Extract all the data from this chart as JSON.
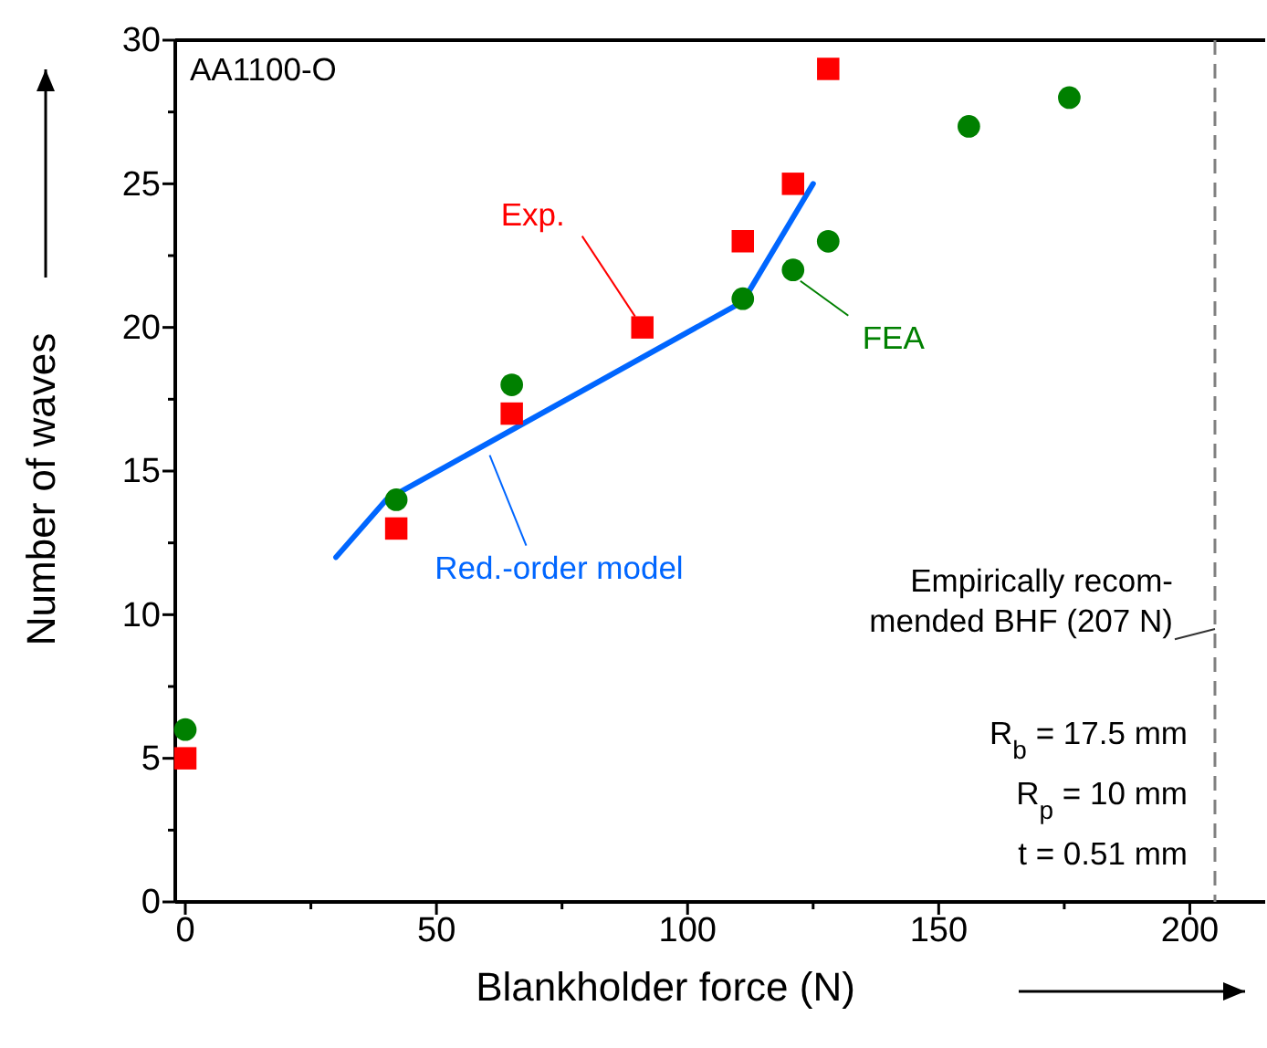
{
  "chart_data": {
    "type": "scatter",
    "xlabel": "Blankholder force (N)",
    "ylabel": "Number of waves",
    "xlim": [
      -2,
      215
    ],
    "ylim": [
      0,
      30
    ],
    "xticks": [
      0,
      {
        "value": 25,
        "label": null
      },
      50,
      {
        "value": 75,
        "label": null
      },
      100,
      {
        "value": 125,
        "label": null
      },
      150,
      {
        "value": 175,
        "label": null
      },
      200
    ],
    "yticks": [
      0,
      {
        "value": 2.5,
        "label": null
      },
      5,
      {
        "value": 7.5,
        "label": null
      },
      10,
      {
        "value": 12.5,
        "label": null
      },
      15,
      {
        "value": 17.5,
        "label": null
      },
      20,
      {
        "value": 22.5,
        "label": null
      },
      25,
      {
        "value": 27.5,
        "label": null
      },
      30
    ],
    "grid": false,
    "series": [
      {
        "name": "Red.-order model",
        "type": "line",
        "color": "#0066ff",
        "marker": "none",
        "line_style": "solid",
        "x": [
          30,
          40,
          111,
          125
        ],
        "values": [
          12,
          14,
          20.9,
          25
        ]
      },
      {
        "name": "Exp.",
        "type": "scatter",
        "color": "#ff0000",
        "marker": "square",
        "x": [
          0,
          42,
          65,
          91,
          111,
          121,
          128
        ],
        "values": [
          5,
          13,
          17,
          20,
          23,
          25,
          29
        ]
      },
      {
        "name": "FEA",
        "type": "scatter",
        "color": "#008000",
        "marker": "circle",
        "x": [
          0,
          42,
          65,
          111,
          121,
          128,
          156,
          176
        ],
        "values": [
          6,
          14,
          18,
          21,
          22,
          23,
          27,
          28
        ]
      }
    ],
    "ref_lines": [
      {
        "axis": "x",
        "value": 205,
        "label": "Empirically recom-\nmended BHF (207 N)",
        "color": "#808080",
        "line_style": "dashed"
      }
    ],
    "annotations": [
      "AA1100-O",
      "R$_{b}$ = 17.5 mm",
      "R$_{p}$ = 10 mm",
      "t = 0.51 mm"
    ]
  }
}
